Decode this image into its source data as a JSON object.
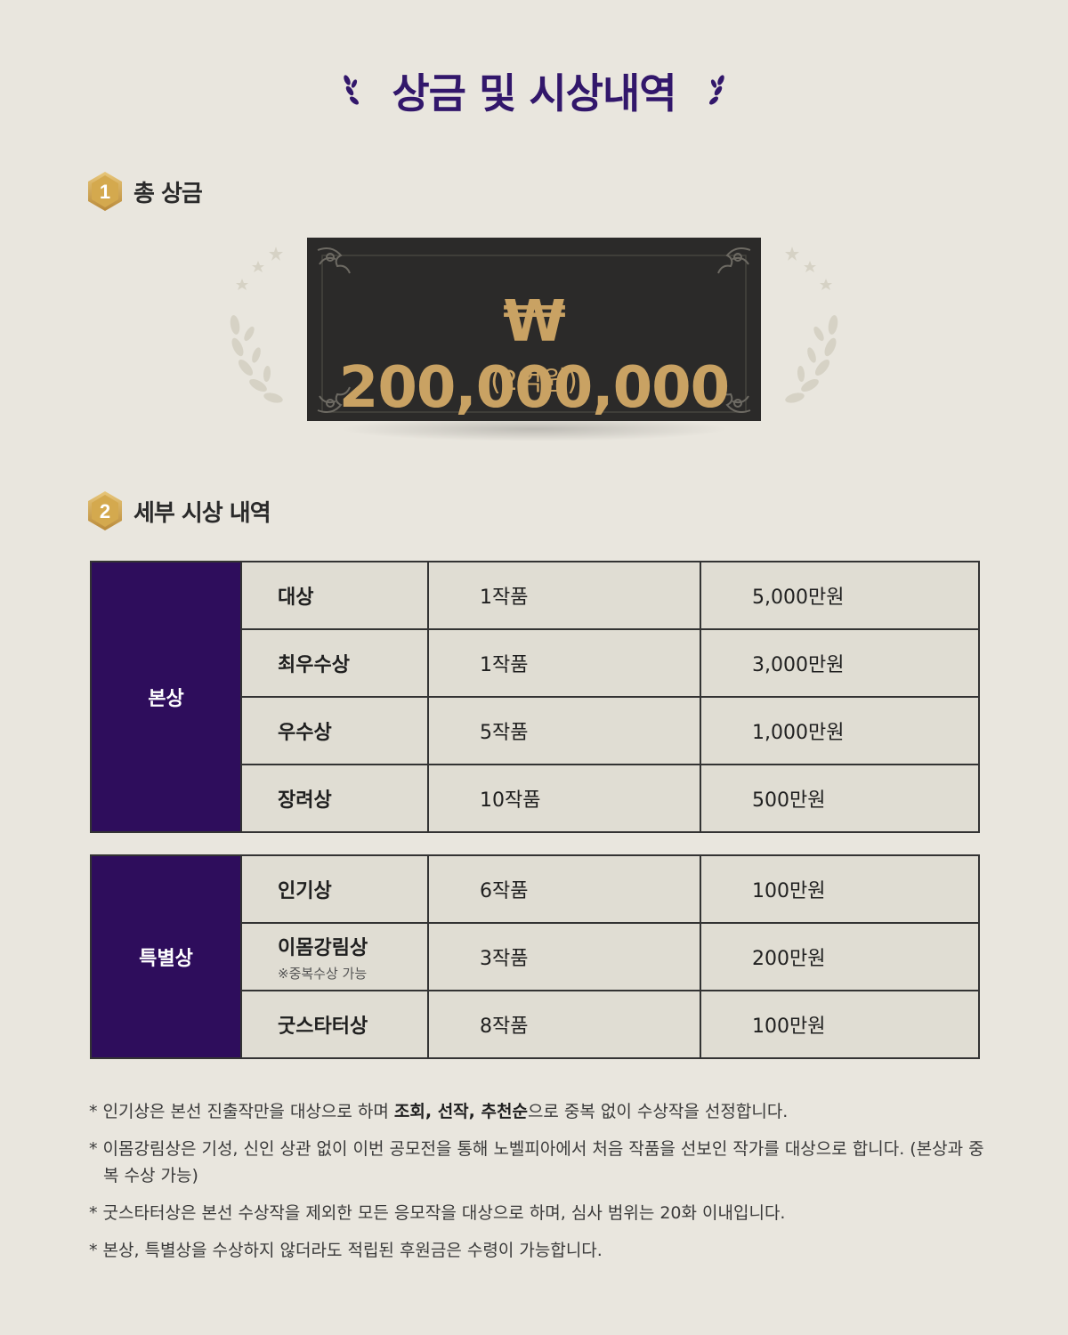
{
  "title": "상금 및 시상내역",
  "section1": {
    "number": "1",
    "label": "총 상금"
  },
  "prize": {
    "amount": "₩ 200,000,000",
    "sub": "(2억원)"
  },
  "section2": {
    "number": "2",
    "label": "세부 시상 내역"
  },
  "main_awards": {
    "category": "본상",
    "rows": [
      {
        "name": "대상",
        "count": "1작품",
        "money": "5,000만원"
      },
      {
        "name": "최우수상",
        "count": "1작품",
        "money": "3,000만원"
      },
      {
        "name": "우수상",
        "count": "5작품",
        "money": "1,000만원"
      },
      {
        "name": "장려상",
        "count": "10작품",
        "money": "500만원"
      }
    ]
  },
  "special_awards": {
    "category": "특별상",
    "rows": [
      {
        "name": "인기상",
        "count": "6작품",
        "money": "100만원"
      },
      {
        "name": "이몸강림상",
        "note": "※중복수상 가능",
        "count": "3작품",
        "money": "200만원"
      },
      {
        "name": "굿스타터상",
        "count": "8작품",
        "money": "100만원"
      }
    ]
  },
  "notes": {
    "n1_pre": "* 인기상은 본선 진출작만을 대상으로 하며 ",
    "n1_bold": "조회, 선작, 추천순",
    "n1_post": "으로 중복 없이 수상작을 선정합니다.",
    "n2": "* 이몸강림상은 기성, 신인 상관 없이 이번 공모전을 통해 노벨피아에서 처음 작품을 선보인 작가를 대상으로 합니다. (본상과 중복 수상 가능)",
    "n3": "* 굿스타터상은 본선 수상작을 제외한 모든 응모작을 대상으로 하며, 심사 범위는 20화 이내입니다.",
    "n4": "* 본상, 특별상을 수상하지 않더라도 적립된 후원금은 수령이 가능합니다."
  },
  "colors": {
    "accent": "#32176b",
    "category_bg": "#2e0d5c",
    "gold": "#c9a263",
    "background": "#e9e6de"
  }
}
